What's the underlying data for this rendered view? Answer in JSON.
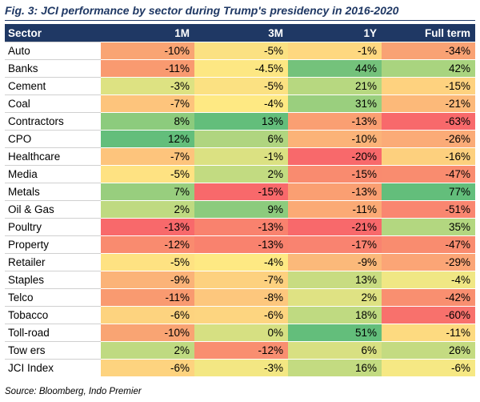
{
  "title": "Fig. 3: JCI performance by sector during Trump's presidency in 2016-2020",
  "headers": [
    "Sector",
    "1M",
    "3M",
    "1Y",
    "Full term"
  ],
  "rows": [
    {
      "sector": "Auto",
      "values": [
        "-10%",
        "-5%",
        "-1%",
        "-34%"
      ],
      "colors": [
        "#f9a473",
        "#fbe182",
        "#fed880",
        "#f9a274"
      ]
    },
    {
      "sector": "Banks",
      "values": [
        "-11%",
        "-4.5%",
        "44%",
        "42%"
      ],
      "colors": [
        "#f99a70",
        "#fde783",
        "#74c27b",
        "#a9d47f"
      ]
    },
    {
      "sector": "Cement",
      "values": [
        "-3%",
        "-5%",
        "21%",
        "-15%"
      ],
      "colors": [
        "#dde282",
        "#fbe182",
        "#b7d880",
        "#fed27f"
      ]
    },
    {
      "sector": "Coal",
      "values": [
        "-7%",
        "-4%",
        "31%",
        "-21%"
      ],
      "colors": [
        "#fdc47c",
        "#fee983",
        "#9acf7e",
        "#fcb979"
      ]
    },
    {
      "sector": "Contractors",
      "values": [
        "8%",
        "13%",
        "-13%",
        "-63%"
      ],
      "colors": [
        "#8ccb7d",
        "#63be7b",
        "#fa9f72",
        "#f8696b"
      ]
    },
    {
      "sector": "CPO",
      "values": [
        "12%",
        "6%",
        "-10%",
        "-26%"
      ],
      "colors": [
        "#63be7b",
        "#b0d580",
        "#fbb378",
        "#fbab77"
      ]
    },
    {
      "sector": "Healthcare",
      "values": [
        "-7%",
        "-1%",
        "-20%",
        "-16%"
      ],
      "colors": [
        "#fdc47c",
        "#dbe182",
        "#f8696b",
        "#fdd07e"
      ]
    },
    {
      "sector": "Media",
      "values": [
        "-5%",
        "2%",
        "-15%",
        "-47%"
      ],
      "colors": [
        "#fee282",
        "#c2db81",
        "#f98b6f",
        "#f98c6f"
      ]
    },
    {
      "sector": "Metals",
      "values": [
        "7%",
        "-15%",
        "-13%",
        "77%"
      ],
      "colors": [
        "#98ce7e",
        "#f8696b",
        "#fa9f72",
        "#63be7b"
      ]
    },
    {
      "sector": "Oil & Gas",
      "values": [
        "2%",
        "9%",
        "-11%",
        "-51%"
      ],
      "colors": [
        "#bfda81",
        "#8ccb7d",
        "#fbaa75",
        "#f98670"
      ]
    },
    {
      "sector": "Poultry",
      "values": [
        "-13%",
        "-13%",
        "-21%",
        "35%"
      ],
      "colors": [
        "#f8696b",
        "#f9826e",
        "#f8696b",
        "#b3d780"
      ]
    },
    {
      "sector": "Property",
      "values": [
        "-12%",
        "-13%",
        "-17%",
        "-47%"
      ],
      "colors": [
        "#f98b6f",
        "#f9826e",
        "#f98370",
        "#f98c6f"
      ]
    },
    {
      "sector": "Retailer",
      "values": [
        "-5%",
        "-4%",
        "-9%",
        "-29%"
      ],
      "colors": [
        "#fee282",
        "#fee983",
        "#fbb97a",
        "#fba576"
      ]
    },
    {
      "sector": "Staples",
      "values": [
        "-9%",
        "-7%",
        "13%",
        "-4%"
      ],
      "colors": [
        "#fbb378",
        "#fdd17f",
        "#c8dc81",
        "#f0e784"
      ]
    },
    {
      "sector": "Telco",
      "values": [
        "-11%",
        "-8%",
        "2%",
        "-42%"
      ],
      "colors": [
        "#f99a70",
        "#fdc77d",
        "#dfe283",
        "#f98f70"
      ]
    },
    {
      "sector": "Tobacco",
      "values": [
        "-6%",
        "-6%",
        "18%",
        "-60%"
      ],
      "colors": [
        "#fdd37f",
        "#fdd580",
        "#bfda81",
        "#f8716c"
      ]
    },
    {
      "sector": "Toll-road",
      "values": [
        "-10%",
        "0%",
        "51%",
        "-11%"
      ],
      "colors": [
        "#f9a473",
        "#d6e082",
        "#63be7b",
        "#fdda80"
      ]
    },
    {
      "sector": "Tow ers",
      "values": [
        "2%",
        "-12%",
        "6%",
        "26%"
      ],
      "colors": [
        "#bfda81",
        "#f98e70",
        "#d8e082",
        "#c4db81"
      ]
    },
    {
      "sector": "JCI Index",
      "values": [
        "-6%",
        "-3%",
        "16%",
        "-6%"
      ],
      "colors": [
        "#fdd37f",
        "#f3e783",
        "#c3db81",
        "#f6e884"
      ]
    }
  ],
  "source": "Source: Bloomberg, Indo Premier",
  "colors": {
    "header_bg": "#1f3864",
    "header_text": "#ffffff",
    "title": "#1f3864"
  }
}
